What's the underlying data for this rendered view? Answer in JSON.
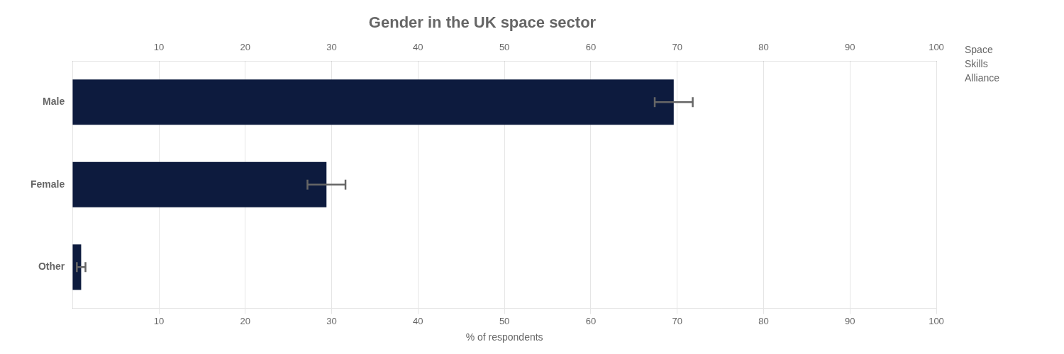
{
  "chart_data": {
    "type": "bar",
    "orientation": "horizontal",
    "title": "Gender in the UK space sector",
    "categories": [
      "Other",
      "Female",
      "Male"
    ],
    "values": [
      1.0,
      29.4,
      69.6
    ],
    "errors": [
      0.5,
      2.2,
      2.2
    ],
    "color": "#0d1b3e",
    "xlabel": "% of respondents",
    "xlim": [
      0,
      100
    ],
    "xticks": [
      10,
      20,
      30,
      40,
      50,
      60,
      70,
      80,
      90,
      100
    ],
    "grid": true,
    "annotations": [
      "Space",
      "Skills",
      "Alliance"
    ]
  }
}
